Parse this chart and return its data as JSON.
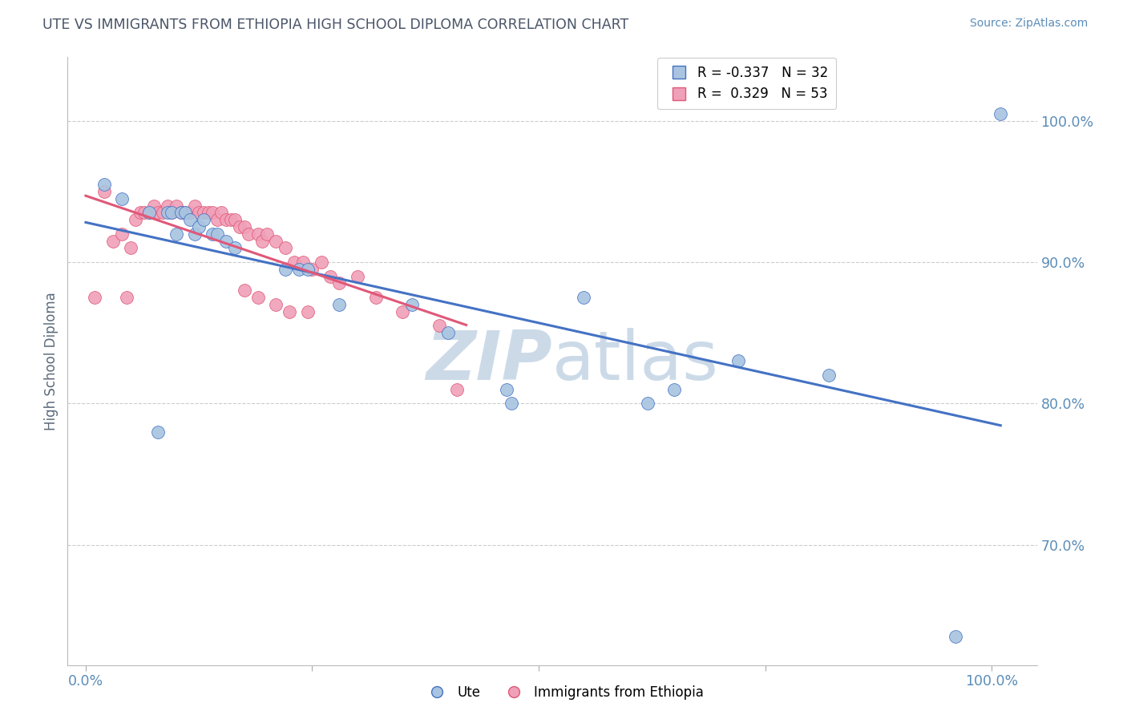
{
  "title": "UTE VS IMMIGRANTS FROM ETHIOPIA HIGH SCHOOL DIPLOMA CORRELATION CHART",
  "source_text": "Source: ZipAtlas.com",
  "ylabel": "High School Diploma",
  "legend_ute": "Ute",
  "legend_eth": "Immigrants from Ethiopia",
  "r_ute": -0.337,
  "n_ute": 32,
  "r_eth": 0.329,
  "n_eth": 53,
  "ute_color": "#a8c4e0",
  "eth_color": "#f0a0b8",
  "ute_line_color": "#4472c4",
  "eth_line_color": "#e05878",
  "title_color": "#4a5568",
  "source_color": "#5b8db8",
  "axis_label_color": "#5a6a7a",
  "tick_label_color": "#5b8db8",
  "watermark_color": "#ccdae8",
  "background_color": "#ffffff",
  "xlim": [
    -0.02,
    1.05
  ],
  "ylim": [
    0.615,
    1.045
  ],
  "yticks": [
    0.7,
    0.8,
    0.9,
    1.0
  ],
  "ytick_labels": [
    "70.0%",
    "80.0%",
    "90.0%",
    "100.0%"
  ],
  "ute_x": [
    0.02,
    0.04,
    0.07,
    0.08,
    0.09,
    0.095,
    0.1,
    0.105,
    0.11,
    0.115,
    0.12,
    0.125,
    0.13,
    0.14,
    0.145,
    0.155,
    0.165,
    0.22,
    0.235,
    0.245,
    0.28,
    0.36,
    0.4,
    0.465,
    0.47,
    0.55,
    0.62,
    0.65,
    0.72,
    0.82,
    0.96,
    1.01
  ],
  "ute_y": [
    0.955,
    0.945,
    0.935,
    0.78,
    0.935,
    0.935,
    0.92,
    0.935,
    0.935,
    0.93,
    0.92,
    0.925,
    0.93,
    0.92,
    0.92,
    0.915,
    0.91,
    0.895,
    0.895,
    0.895,
    0.87,
    0.87,
    0.85,
    0.81,
    0.8,
    0.875,
    0.8,
    0.81,
    0.83,
    0.82,
    0.635,
    1.005
  ],
  "eth_x": [
    0.01,
    0.02,
    0.03,
    0.04,
    0.045,
    0.05,
    0.055,
    0.06,
    0.065,
    0.07,
    0.075,
    0.08,
    0.085,
    0.09,
    0.095,
    0.1,
    0.105,
    0.11,
    0.115,
    0.12,
    0.125,
    0.13,
    0.135,
    0.14,
    0.145,
    0.15,
    0.155,
    0.16,
    0.165,
    0.17,
    0.175,
    0.18,
    0.19,
    0.195,
    0.2,
    0.21,
    0.22,
    0.23,
    0.24,
    0.25,
    0.26,
    0.27,
    0.28,
    0.3,
    0.32,
    0.35,
    0.175,
    0.19,
    0.21,
    0.225,
    0.245,
    0.39,
    0.41
  ],
  "eth_y": [
    0.875,
    0.95,
    0.915,
    0.92,
    0.875,
    0.91,
    0.93,
    0.935,
    0.935,
    0.935,
    0.94,
    0.935,
    0.935,
    0.94,
    0.935,
    0.94,
    0.935,
    0.935,
    0.935,
    0.94,
    0.935,
    0.935,
    0.935,
    0.935,
    0.93,
    0.935,
    0.93,
    0.93,
    0.93,
    0.925,
    0.925,
    0.92,
    0.92,
    0.915,
    0.92,
    0.915,
    0.91,
    0.9,
    0.9,
    0.895,
    0.9,
    0.89,
    0.885,
    0.89,
    0.875,
    0.865,
    0.88,
    0.875,
    0.87,
    0.865,
    0.865,
    0.855,
    0.81
  ]
}
